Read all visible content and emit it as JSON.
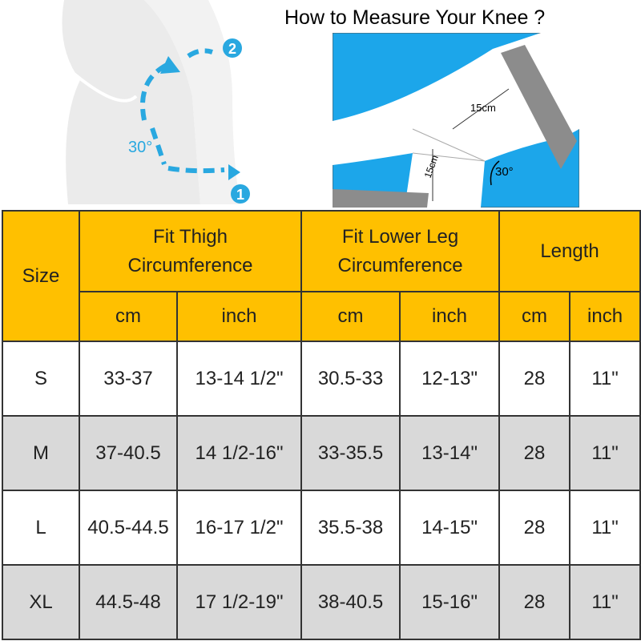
{
  "title": "How to Measure Your Knee ?",
  "left_illustration": {
    "angle": "30°",
    "steps": [
      "1",
      "2"
    ]
  },
  "right_illustration": {
    "measure_upper": "15cm",
    "measure_lower": "15cm",
    "angle": "30°"
  },
  "table": {
    "header": {
      "size": "Size",
      "groups": [
        [
          "Fit Thigh",
          "Circumference"
        ],
        [
          "Fit Lower Leg",
          "Circumference"
        ],
        [
          "Length"
        ]
      ],
      "units": [
        "cm",
        "inch",
        "cm",
        "inch",
        "cm",
        "inch"
      ]
    },
    "rows": [
      [
        "S",
        "33-37",
        "13-14 1/2\"",
        "30.5-33",
        "12-13\"",
        "28",
        "11\""
      ],
      [
        "M",
        "37-40.5",
        "14 1/2-16\"",
        "33-35.5",
        "13-14\"",
        "28",
        "11\""
      ],
      [
        "L",
        "40.5-44.5",
        "16-17 1/2\"",
        "35.5-38",
        "14-15\"",
        "28",
        "11\""
      ],
      [
        "XL",
        "44.5-48",
        "17 1/2-19\"",
        "38-40.5",
        "15-16\"",
        "28",
        "11\""
      ]
    ]
  }
}
